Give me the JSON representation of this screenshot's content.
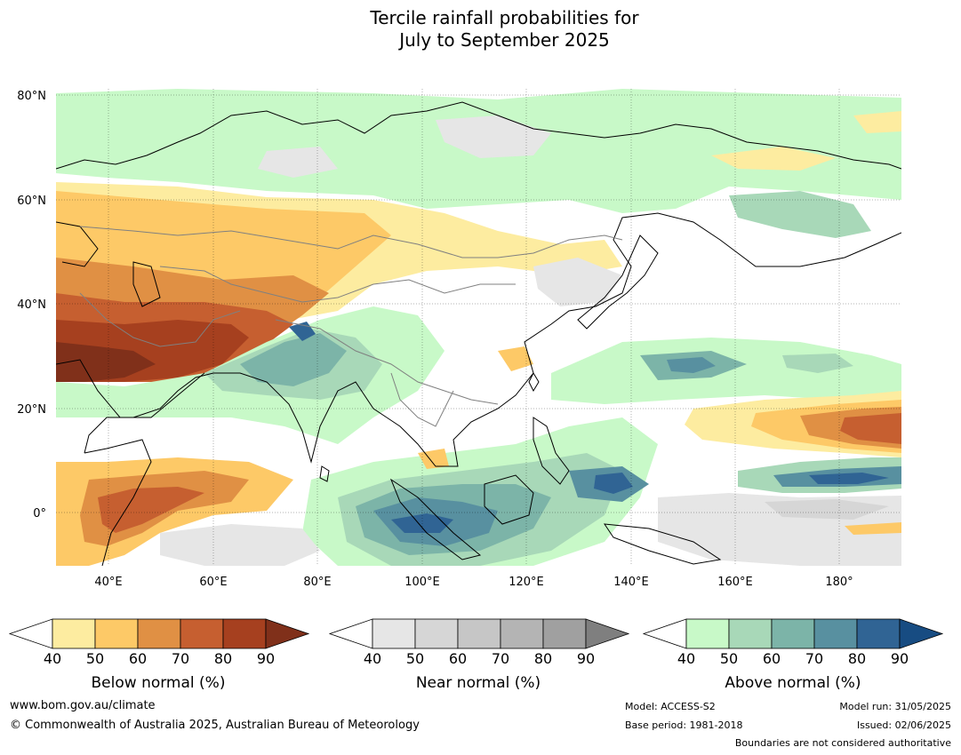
{
  "title_line1": "Tercile rainfall probabilities for",
  "title_line2": "July to September 2025",
  "map": {
    "lat_labels": [
      "80°N",
      "60°N",
      "40°N",
      "20°N",
      "0°"
    ],
    "lon_labels": [
      "40°E",
      "60°E",
      "80°E",
      "100°E",
      "120°E",
      "140°E",
      "160°E",
      "180°"
    ]
  },
  "colorbars": [
    {
      "name": "below",
      "label": "Below normal (%)",
      "ticks": [
        "40",
        "50",
        "60",
        "70",
        "80",
        "90"
      ],
      "colors": [
        "#ffffff",
        "#fdeca0",
        "#fdc967",
        "#e09044",
        "#c65f30",
        "#a6401f",
        "#80301a"
      ]
    },
    {
      "name": "near",
      "label": "Near normal (%)",
      "ticks": [
        "40",
        "50",
        "60",
        "70",
        "80",
        "90"
      ],
      "colors": [
        "#ffffff",
        "#e6e6e6",
        "#d6d6d6",
        "#c6c6c6",
        "#b4b4b4",
        "#a0a0a0",
        "#7f7f7f"
      ]
    },
    {
      "name": "above",
      "label": "Above normal (%)",
      "ticks": [
        "40",
        "50",
        "60",
        "70",
        "80",
        "90"
      ],
      "colors": [
        "#ffffff",
        "#c8f9c8",
        "#a8d8b8",
        "#7cb4a8",
        "#5890a0",
        "#306494",
        "#174c82"
      ]
    }
  ],
  "footer": {
    "website": "www.bom.gov.au/climate",
    "copyright": "© Commonwealth of Australia 2025, Australian Bureau of Meteorology",
    "model": "Model: ACCESS-S2",
    "base_period": "Base period: 1981-2018",
    "model_run": "Model run: 31/05/2025",
    "issued": "Issued: 02/06/2025",
    "disclaimer": "Boundaries are not considered authoritative"
  }
}
